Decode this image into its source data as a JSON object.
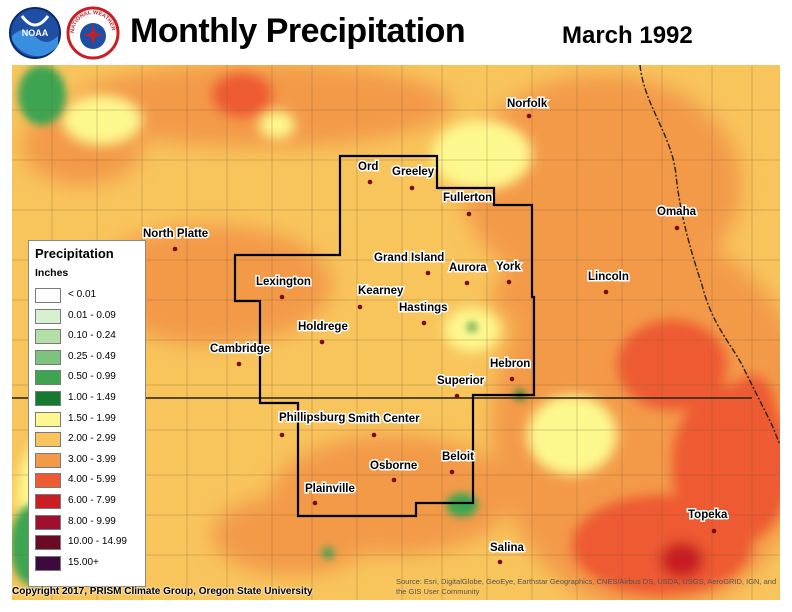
{
  "header": {
    "title": "Monthly Precipitation",
    "date": "March 1992",
    "noaa_logo_text": "NOAA",
    "nws_logo_text": "NATIONAL WEATHER SERVICE"
  },
  "legend": {
    "title": "Precipitation",
    "units": "Inches",
    "items": [
      {
        "label": "< 0.01",
        "color": "#ffffff"
      },
      {
        "label": "0.01 - 0.09",
        "color": "#d8f0d0"
      },
      {
        "label": "0.10 - 0.24",
        "color": "#b4e0a8"
      },
      {
        "label": "0.25 - 0.49",
        "color": "#7cc47c"
      },
      {
        "label": "0.50 - 0.99",
        "color": "#3ea451"
      },
      {
        "label": "1.00 - 1.49",
        "color": "#147a2e"
      },
      {
        "label": "1.50 - 1.99",
        "color": "#fdf88e"
      },
      {
        "label": "2.00 - 2.99",
        "color": "#f8c45c"
      },
      {
        "label": "3.00 - 3.99",
        "color": "#f39a48"
      },
      {
        "label": "4.00 - 5.99",
        "color": "#ee5a32"
      },
      {
        "label": "6.00 - 7.99",
        "color": "#c81e24"
      },
      {
        "label": "8.00 - 9.99",
        "color": "#a0102e"
      },
      {
        "label": "10.00 - 14.99",
        "color": "#6a0a24"
      },
      {
        "label": "15.00+",
        "color": "#3c0a3c"
      }
    ]
  },
  "cities": [
    {
      "name": "Norfolk"
    },
    {
      "name": "Ord"
    },
    {
      "name": "Greeley"
    },
    {
      "name": "Fullerton"
    },
    {
      "name": "Omaha"
    },
    {
      "name": "North Platte"
    },
    {
      "name": "Grand Island"
    },
    {
      "name": "Aurora"
    },
    {
      "name": "York"
    },
    {
      "name": "Lincoln"
    },
    {
      "name": "Lexington"
    },
    {
      "name": "Kearney"
    },
    {
      "name": "Hastings"
    },
    {
      "name": "Holdrege"
    },
    {
      "name": "Cambridge"
    },
    {
      "name": "Hebron"
    },
    {
      "name": "Superior"
    },
    {
      "name": "Phillipsburg"
    },
    {
      "name": "Smith Center"
    },
    {
      "name": "Osborne"
    },
    {
      "name": "Beloit"
    },
    {
      "name": "Plainville"
    },
    {
      "name": "Topeka"
    },
    {
      "name": "Salina"
    }
  ],
  "footer": {
    "copyright": "Copyright 2017, PRISM Climate Group, Oregon State University",
    "source": "Source: Esri, DigitalGlobe, GeoEye, Earthstar Geographics, CNES/Airbus DS, USDA, USGS, AeroGRID, IGN, and the GIS User Community"
  }
}
